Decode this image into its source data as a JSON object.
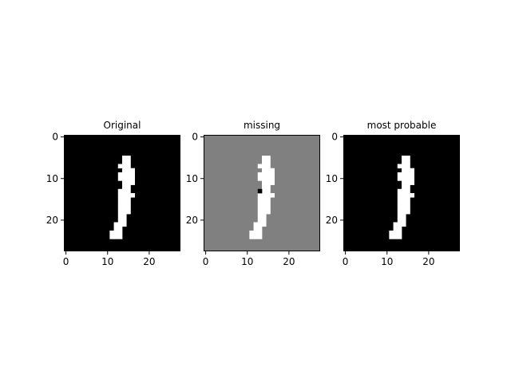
{
  "chart_data": [
    {
      "type": "heatmap",
      "title": "Original",
      "grid_size": [
        28,
        28
      ],
      "xlim": [
        0,
        28
      ],
      "ylim": [
        28,
        0
      ],
      "x_ticks": [
        0,
        10,
        20
      ],
      "y_ticks": [
        0,
        10,
        20
      ],
      "colormap": "gray",
      "background_value": 0,
      "background_color": "#000000",
      "pixels": [
        {
          "row": 5,
          "cols": [
            14,
            15
          ]
        },
        {
          "row": 6,
          "cols": [
            14,
            15
          ]
        },
        {
          "row": 7,
          "cols": [
            13,
            14,
            15
          ]
        },
        {
          "row": 8,
          "cols": [
            14,
            15,
            16
          ]
        },
        {
          "row": 9,
          "cols": [
            13,
            14,
            15,
            16
          ]
        },
        {
          "row": 10,
          "cols": [
            13,
            14,
            15,
            16
          ]
        },
        {
          "row": 11,
          "cols": [
            14,
            15,
            16
          ]
        },
        {
          "row": 12,
          "cols": [
            14,
            15
          ]
        },
        {
          "row": 13,
          "cols": [
            13,
            14,
            15
          ]
        },
        {
          "row": 14,
          "cols": [
            13,
            14,
            15,
            16
          ]
        },
        {
          "row": 15,
          "cols": [
            13,
            14,
            15
          ]
        },
        {
          "row": 16,
          "cols": [
            13,
            14,
            15
          ]
        },
        {
          "row": 17,
          "cols": [
            13,
            14,
            15
          ]
        },
        {
          "row": 18,
          "cols": [
            13,
            14,
            15
          ]
        },
        {
          "row": 19,
          "cols": [
            13,
            14
          ]
        },
        {
          "row": 20,
          "cols": [
            13,
            14
          ]
        },
        {
          "row": 21,
          "cols": [
            12,
            13,
            14
          ]
        },
        {
          "row": 22,
          "cols": [
            12,
            13
          ]
        },
        {
          "row": 23,
          "cols": [
            11,
            12,
            13
          ]
        },
        {
          "row": 24,
          "cols": [
            11,
            12,
            13
          ]
        }
      ]
    },
    {
      "type": "heatmap",
      "title": "missing",
      "grid_size": [
        28,
        28
      ],
      "xlim": [
        0,
        28
      ],
      "ylim": [
        28,
        0
      ],
      "x_ticks": [
        0,
        10,
        20
      ],
      "y_ticks": [
        0,
        10,
        20
      ],
      "colormap": "gray",
      "background_value": 0.5,
      "background_color": "#808080",
      "pixels": [
        {
          "row": 5,
          "cols": [
            14,
            15
          ]
        },
        {
          "row": 6,
          "cols": [
            14,
            15
          ]
        },
        {
          "row": 7,
          "cols": [
            13,
            14,
            15
          ]
        },
        {
          "row": 8,
          "cols": [
            14,
            15,
            16
          ]
        },
        {
          "row": 9,
          "cols": [
            13,
            14,
            15,
            16
          ]
        },
        {
          "row": 10,
          "cols": [
            13,
            14,
            15,
            16
          ]
        },
        {
          "row": 11,
          "cols": [
            14,
            15,
            16
          ]
        },
        {
          "row": 12,
          "cols": [
            14,
            15
          ]
        },
        {
          "row": 13,
          "cols": [
            14,
            15
          ]
        },
        {
          "row": 14,
          "cols": [
            13,
            14,
            15,
            16
          ]
        },
        {
          "row": 15,
          "cols": [
            13,
            14,
            15
          ]
        },
        {
          "row": 16,
          "cols": [
            13,
            14,
            15
          ]
        },
        {
          "row": 17,
          "cols": [
            13,
            14,
            15
          ]
        },
        {
          "row": 18,
          "cols": [
            13,
            14,
            15
          ]
        },
        {
          "row": 19,
          "cols": [
            13,
            14
          ]
        },
        {
          "row": 20,
          "cols": [
            13,
            14
          ]
        },
        {
          "row": 21,
          "cols": [
            12,
            13,
            14
          ]
        },
        {
          "row": 22,
          "cols": [
            12,
            13
          ]
        },
        {
          "row": 23,
          "cols": [
            11,
            12,
            13
          ]
        },
        {
          "row": 24,
          "cols": [
            11,
            12,
            13
          ]
        }
      ],
      "zero_pixels": [
        {
          "row": 13,
          "cols": [
            13
          ]
        }
      ]
    },
    {
      "type": "heatmap",
      "title": "most probable",
      "grid_size": [
        28,
        28
      ],
      "xlim": [
        0,
        28
      ],
      "ylim": [
        28,
        0
      ],
      "x_ticks": [
        0,
        10,
        20
      ],
      "y_ticks": [
        0,
        10,
        20
      ],
      "colormap": "gray",
      "background_value": 0,
      "background_color": "#000000",
      "pixels": [
        {
          "row": 5,
          "cols": [
            14,
            15
          ]
        },
        {
          "row": 6,
          "cols": [
            14,
            15
          ]
        },
        {
          "row": 7,
          "cols": [
            13,
            14,
            15
          ]
        },
        {
          "row": 8,
          "cols": [
            14,
            15,
            16
          ]
        },
        {
          "row": 9,
          "cols": [
            13,
            14,
            15,
            16
          ]
        },
        {
          "row": 10,
          "cols": [
            13,
            14,
            15,
            16
          ]
        },
        {
          "row": 11,
          "cols": [
            14,
            15,
            16
          ]
        },
        {
          "row": 12,
          "cols": [
            14,
            15
          ]
        },
        {
          "row": 13,
          "cols": [
            13,
            14,
            15
          ]
        },
        {
          "row": 14,
          "cols": [
            13,
            14,
            15,
            16
          ]
        },
        {
          "row": 15,
          "cols": [
            13,
            14,
            15
          ]
        },
        {
          "row": 16,
          "cols": [
            13,
            14,
            15
          ]
        },
        {
          "row": 17,
          "cols": [
            13,
            14,
            15
          ]
        },
        {
          "row": 18,
          "cols": [
            13,
            14,
            15
          ]
        },
        {
          "row": 19,
          "cols": [
            13,
            14
          ]
        },
        {
          "row": 20,
          "cols": [
            13,
            14
          ]
        },
        {
          "row": 21,
          "cols": [
            12,
            13,
            14
          ]
        },
        {
          "row": 22,
          "cols": [
            12,
            13
          ]
        },
        {
          "row": 23,
          "cols": [
            11,
            12,
            13
          ]
        },
        {
          "row": 24,
          "cols": [
            11,
            12,
            13
          ]
        }
      ]
    }
  ]
}
